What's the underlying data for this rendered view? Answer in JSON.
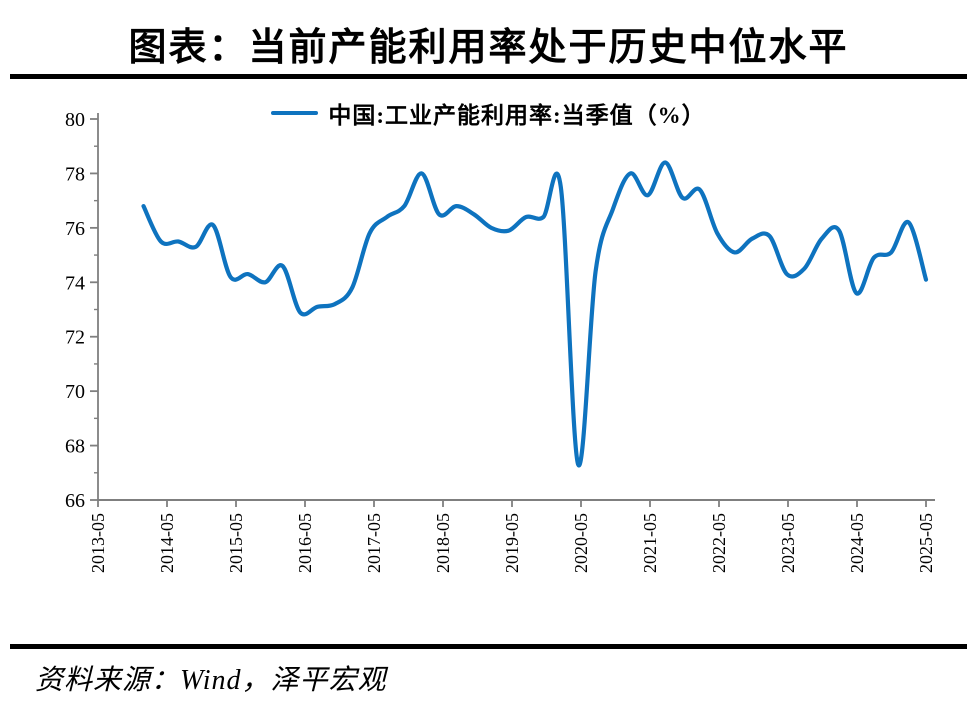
{
  "page": {
    "title": "图表：当前产能利用率处于历史中位水平",
    "source_note": "资料来源：Wind，泽平宏观"
  },
  "legend": {
    "series_label": "中国:工业产能利用率:当季值（%）"
  },
  "colors": {
    "line": "#0e73bf",
    "axis": "#7f7f7f",
    "text": "#000000",
    "rule": "#000000"
  },
  "chart_data": {
    "type": "line",
    "title": "图表：当前产能利用率处于历史中位水平",
    "legend_position": "top",
    "grid": false,
    "xlabel": "",
    "ylabel": "",
    "ylim": [
      66,
      80
    ],
    "y_ticks": [
      66,
      68,
      70,
      72,
      74,
      76,
      78,
      80
    ],
    "x_tick_labels": [
      "2013-05",
      "2014-05",
      "2015-05",
      "2016-05",
      "2017-05",
      "2018-05",
      "2019-05",
      "2020-05",
      "2021-05",
      "2022-05",
      "2023-05",
      "2024-05",
      "2025-05"
    ],
    "series": [
      {
        "name": "中国:工业产能利用率:当季值（%）",
        "x": [
          "2013-12",
          "2014-03",
          "2014-06",
          "2014-09",
          "2014-12",
          "2015-03",
          "2015-06",
          "2015-09",
          "2015-12",
          "2016-03",
          "2016-06",
          "2016-09",
          "2016-12",
          "2017-03",
          "2017-06",
          "2017-09",
          "2017-12",
          "2018-03",
          "2018-06",
          "2018-09",
          "2018-12",
          "2019-03",
          "2019-06",
          "2019-09",
          "2019-12",
          "2020-03",
          "2020-06",
          "2020-09",
          "2020-12",
          "2021-03",
          "2021-06",
          "2021-09",
          "2021-12",
          "2022-03",
          "2022-06",
          "2022-09",
          "2022-12",
          "2023-03",
          "2023-06",
          "2023-09",
          "2023-12",
          "2024-03",
          "2024-06",
          "2024-09",
          "2024-12",
          "2025-03"
        ],
        "values": [
          76.8,
          75.5,
          75.5,
          75.3,
          76.1,
          74.2,
          74.3,
          74.0,
          74.6,
          72.9,
          73.1,
          73.2,
          73.8,
          75.8,
          76.4,
          76.8,
          78.0,
          76.5,
          76.8,
          76.5,
          76.0,
          75.9,
          76.4,
          76.4,
          77.5,
          67.3,
          74.4,
          76.7,
          78.0,
          77.2,
          78.4,
          77.1,
          77.4,
          75.8,
          75.1,
          75.6,
          75.7,
          74.3,
          74.5,
          75.6,
          75.9,
          73.6,
          74.9,
          75.1,
          76.2,
          74.1
        ]
      }
    ]
  }
}
